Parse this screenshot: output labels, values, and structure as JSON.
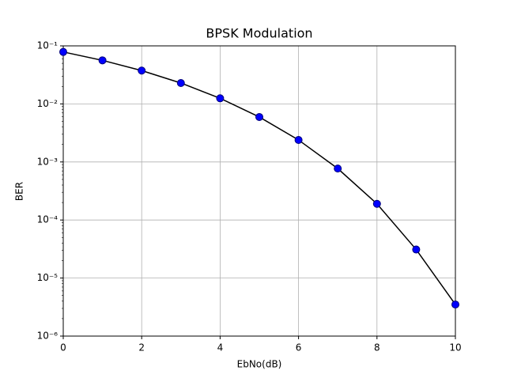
{
  "chart_data": {
    "type": "line",
    "title": "BPSK Modulation",
    "x_label": "EbNo(dB)",
    "y_label": "BER",
    "x": [
      0,
      1,
      2,
      3,
      4,
      5,
      6,
      7,
      8,
      9,
      10
    ],
    "values": [
      0.0786,
      0.0563,
      0.0375,
      0.0229,
      0.0125,
      0.00595,
      0.00239,
      0.00077,
      0.00019,
      3.1e-05,
      3.5e-06
    ],
    "line_color": "#000000",
    "marker_color": "#0000ff",
    "xlim": [
      0,
      10
    ],
    "xticks": [
      0,
      2,
      4,
      6,
      8,
      10
    ],
    "ylim": [
      1e-06,
      0.1
    ],
    "y_log": true,
    "yticks": [
      {
        "value": 1e-06,
        "label": "10⁻⁶"
      },
      {
        "value": 1e-05,
        "label": "10⁻⁵"
      },
      {
        "value": 0.0001,
        "label": "10⁻⁴"
      },
      {
        "value": 0.001,
        "label": "10⁻³"
      },
      {
        "value": 0.01,
        "label": "10⁻²"
      },
      {
        "value": 0.1,
        "label": "10⁻¹"
      }
    ],
    "grid": true
  }
}
